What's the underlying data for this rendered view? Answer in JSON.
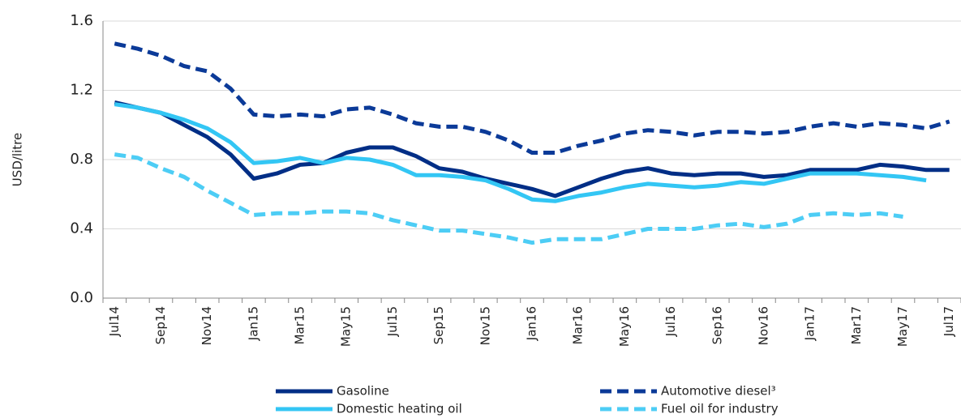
{
  "chart_data": {
    "type": "line",
    "y_label": "USD/litre",
    "categories": [
      "Jul14",
      null,
      "Sep14",
      null,
      "Nov14",
      null,
      "Jan15",
      null,
      "Mar15",
      null,
      "May15",
      null,
      "Jul15",
      null,
      "Sep15",
      null,
      "Nov15",
      null,
      "Jan16",
      null,
      "Mar16",
      null,
      "May16",
      null,
      "Jul16",
      null,
      "Sep16",
      null,
      "Nov16",
      null,
      "Jan17",
      null,
      "Mar17",
      null,
      "May17",
      null,
      "Jul17"
    ],
    "series": [
      {
        "name": "Gasoline",
        "color": "#012e86",
        "style": "solid",
        "values": [
          1.13,
          1.1,
          1.07,
          1.0,
          0.93,
          0.83,
          0.69,
          0.72,
          0.77,
          0.78,
          0.84,
          0.87,
          0.87,
          0.82,
          0.75,
          0.73,
          0.69,
          0.66,
          0.63,
          0.59,
          0.64,
          0.69,
          0.73,
          0.75,
          0.72,
          0.71,
          0.72,
          0.72,
          0.7,
          0.71,
          0.74,
          0.74,
          0.74,
          0.77,
          0.76,
          0.74,
          0.74
        ]
      },
      {
        "name": "Automotive diesel³",
        "color": "#0b3a98",
        "style": "dashed",
        "values": [
          1.47,
          1.44,
          1.4,
          1.34,
          1.31,
          1.21,
          1.06,
          1.05,
          1.06,
          1.05,
          1.09,
          1.1,
          1.06,
          1.01,
          0.99,
          0.99,
          0.96,
          0.91,
          0.84,
          0.84,
          0.88,
          0.91,
          0.95,
          0.97,
          0.96,
          0.94,
          0.96,
          0.96,
          0.95,
          0.96,
          0.99,
          1.01,
          0.99,
          1.01,
          1.0,
          0.98,
          1.02
        ]
      },
      {
        "name": "Domestic heating oil",
        "color": "#33c6f4",
        "style": "solid",
        "values": [
          1.12,
          1.1,
          1.07,
          1.03,
          0.98,
          0.9,
          0.78,
          0.79,
          0.81,
          0.78,
          0.81,
          0.8,
          0.77,
          0.71,
          0.71,
          0.7,
          0.68,
          0.63,
          0.57,
          0.56,
          0.59,
          0.61,
          0.64,
          0.66,
          0.65,
          0.64,
          0.65,
          0.67,
          0.66,
          0.69,
          0.72,
          0.72,
          0.72,
          0.71,
          0.7,
          0.68,
          null
        ]
      },
      {
        "name": "Fuel oil for industry",
        "color": "#4dcdf5",
        "style": "dashed",
        "values": [
          0.83,
          0.81,
          0.75,
          0.7,
          0.62,
          0.55,
          0.48,
          0.49,
          0.49,
          0.5,
          0.5,
          0.49,
          0.45,
          0.42,
          0.39,
          0.39,
          0.37,
          0.35,
          0.32,
          0.34,
          0.34,
          0.34,
          0.37,
          0.4,
          0.4,
          0.4,
          0.42,
          0.43,
          0.41,
          0.43,
          0.48,
          0.49,
          0.48,
          0.49,
          0.47,
          null,
          null
        ]
      }
    ],
    "ylim": [
      0,
      1.6
    ],
    "yticks": [
      {
        "value": 0,
        "label": "0.0"
      },
      0.4,
      0.8,
      1.2,
      1.6
    ],
    "grid": true,
    "legend": "bottom"
  }
}
